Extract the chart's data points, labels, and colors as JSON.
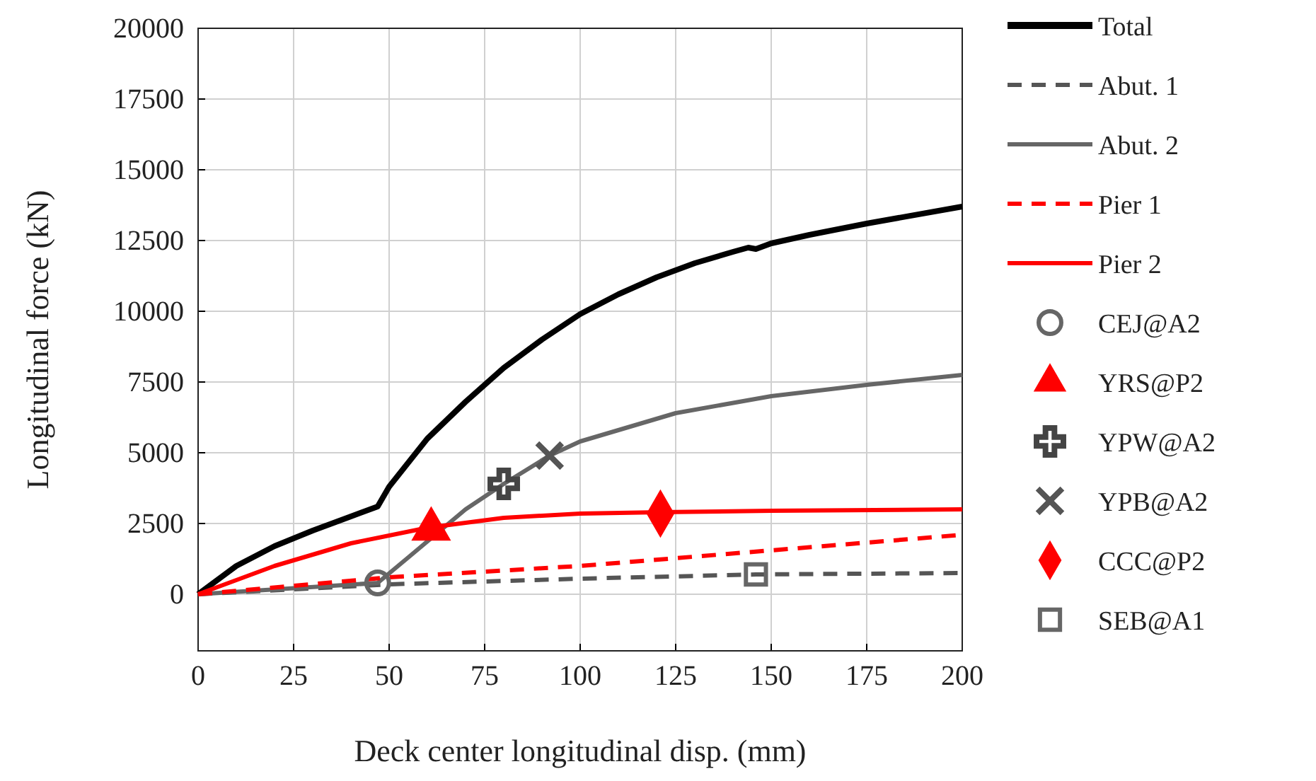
{
  "chart_data": {
    "type": "line",
    "xlabel": "Deck center longitudinal disp. (mm)",
    "ylabel": "Longitudinal force (kN)",
    "xlim": [
      0,
      200
    ],
    "ylim": [
      -2000,
      20000
    ],
    "xticks": [
      0,
      25,
      50,
      75,
      100,
      125,
      150,
      175,
      200
    ],
    "yticks": [
      0,
      2500,
      5000,
      7500,
      10000,
      12500,
      15000,
      17500,
      20000
    ],
    "grid": true,
    "legend": "right",
    "series": [
      {
        "name": "Total",
        "color": "#000000",
        "line_style": "solid",
        "x": [
          0,
          10,
          20,
          30,
          40,
          47,
          50,
          60,
          70,
          80,
          90,
          100,
          110,
          120,
          130,
          140,
          144,
          146,
          150,
          160,
          175,
          200
        ],
        "values": [
          0,
          1000,
          1700,
          2250,
          2750,
          3100,
          3800,
          5500,
          6800,
          8000,
          9000,
          9900,
          10600,
          11200,
          11700,
          12100,
          12250,
          12200,
          12400,
          12700,
          13100,
          13700
        ]
      },
      {
        "name": "Abut. 1",
        "color": "#555555",
        "line_style": "dashed",
        "x": [
          0,
          50,
          100,
          146,
          200
        ],
        "values": [
          0,
          350,
          550,
          700,
          750
        ]
      },
      {
        "name": "Abut. 2",
        "color": "#666666",
        "line_style": "solid",
        "x": [
          0,
          47,
          55,
          70,
          80,
          92,
          100,
          125,
          150,
          175,
          200
        ],
        "values": [
          0,
          400,
          1300,
          3000,
          3900,
          4900,
          5400,
          6400,
          7000,
          7400,
          7750
        ]
      },
      {
        "name": "Pier 1",
        "color": "#ff0000",
        "line_style": "dashed",
        "x": [
          0,
          50,
          100,
          150,
          200
        ],
        "values": [
          0,
          600,
          1000,
          1550,
          2100
        ]
      },
      {
        "name": "Pier 2",
        "color": "#ff0000",
        "line_style": "solid",
        "x": [
          0,
          20,
          40,
          60,
          80,
          100,
          121,
          150,
          200
        ],
        "values": [
          0,
          1000,
          1800,
          2350,
          2700,
          2850,
          2900,
          2950,
          3000
        ]
      },
      {
        "name": "CEJ@A2",
        "type": "scatter",
        "marker": "circle",
        "color": "#666666",
        "x": [
          47
        ],
        "values": [
          400
        ]
      },
      {
        "name": "YRS@P2",
        "type": "scatter",
        "marker": "triangle",
        "color": "#ff0000",
        "x": [
          61
        ],
        "values": [
          2300
        ]
      },
      {
        "name": "YPW@A2",
        "type": "scatter",
        "marker": "cross",
        "color": "#444444",
        "x": [
          80
        ],
        "values": [
          3900
        ]
      },
      {
        "name": "YPB@A2",
        "type": "scatter",
        "marker": "x",
        "color": "#555555",
        "x": [
          92
        ],
        "values": [
          4900
        ]
      },
      {
        "name": "CCC@P2",
        "type": "scatter",
        "marker": "diamond",
        "color": "#ff0000",
        "x": [
          121
        ],
        "values": [
          2850
        ]
      },
      {
        "name": "SEB@A1",
        "type": "scatter",
        "marker": "square",
        "color": "#666666",
        "x": [
          146
        ],
        "values": [
          700
        ]
      }
    ]
  }
}
